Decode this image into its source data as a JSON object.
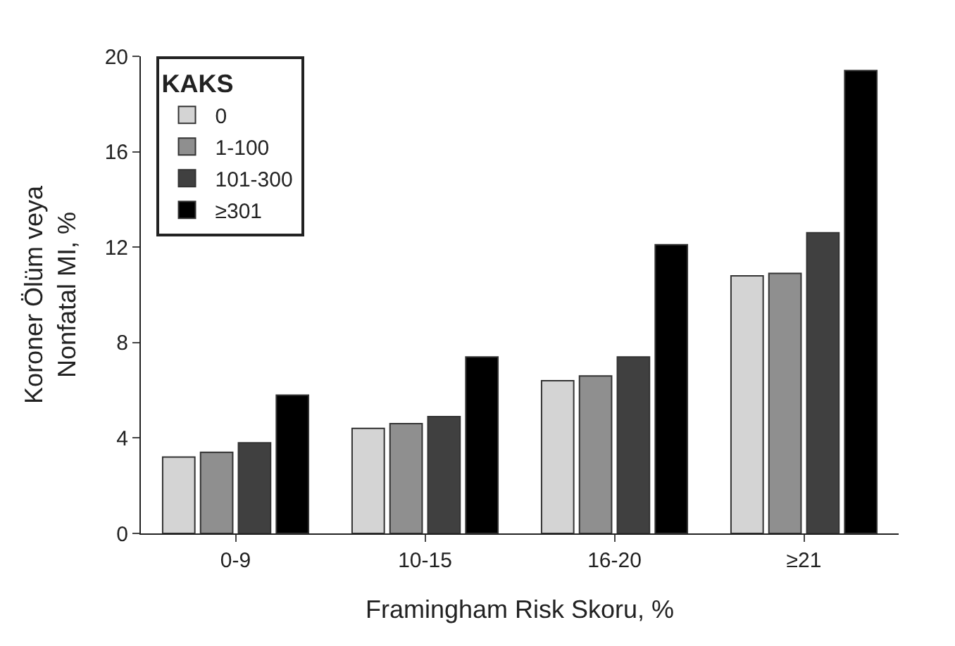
{
  "chart_data": {
    "type": "bar",
    "xlabel": "Framingham Risk Skoru, %",
    "ylabel": "Koroner Ölüm veya\nNonfatal MI, %",
    "legend_title": "KAKS",
    "legend": "top left",
    "categories": [
      "0-9",
      "10-15",
      "16-20",
      "≥21"
    ],
    "ylim": [
      0,
      20
    ],
    "yticks": [
      0,
      4,
      8,
      12,
      16,
      20
    ],
    "series": [
      {
        "name": "0",
        "color": "#d4d4d4",
        "values": [
          3.2,
          4.4,
          6.4,
          10.8
        ]
      },
      {
        "name": "1-100",
        "color": "#8f8f8f",
        "values": [
          3.4,
          4.6,
          6.6,
          10.9
        ]
      },
      {
        "name": "101-300",
        "color": "#404040",
        "values": [
          3.8,
          4.9,
          7.4,
          12.6
        ]
      },
      {
        "name": "≥301",
        "color": "#000000",
        "values": [
          5.8,
          7.4,
          12.1,
          19.4
        ]
      }
    ]
  }
}
